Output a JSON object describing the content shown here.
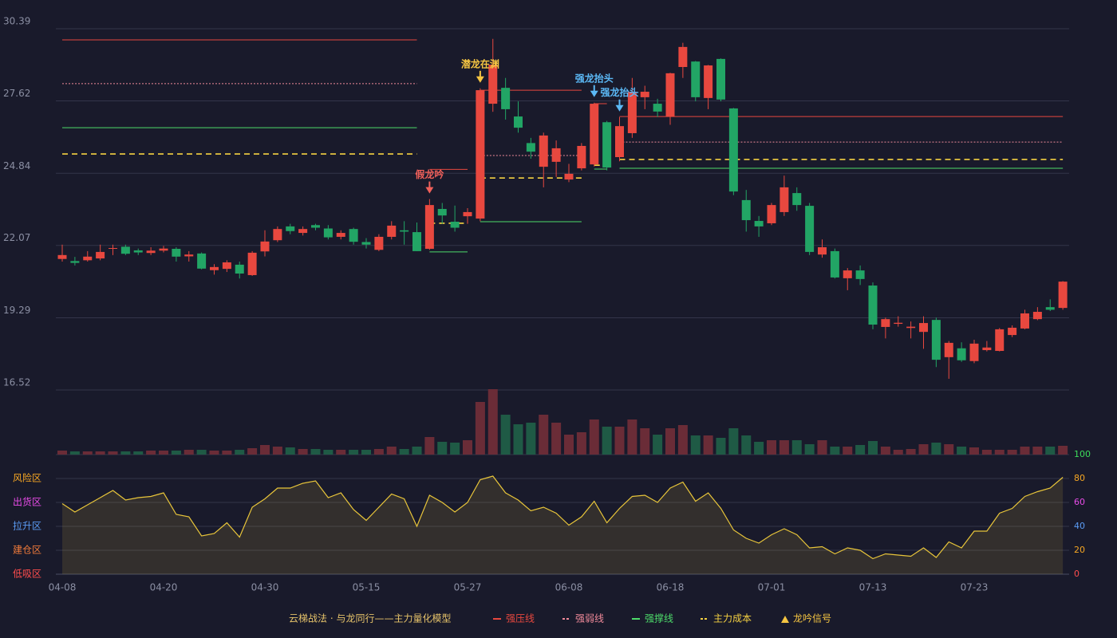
{
  "chart_data": {
    "type": "candlestick",
    "title": "云梯战法 · 与龙同行——主力量化模型",
    "categories": [
      "04-08",
      null,
      null,
      null,
      null,
      null,
      null,
      null,
      "04-20",
      null,
      null,
      null,
      null,
      null,
      null,
      null,
      "04-30",
      null,
      null,
      null,
      null,
      null,
      null,
      null,
      "05-15",
      null,
      null,
      null,
      null,
      null,
      null,
      null,
      "05-27",
      null,
      null,
      null,
      null,
      null,
      null,
      null,
      "06-08",
      null,
      null,
      null,
      null,
      null,
      null,
      null,
      "06-18",
      null,
      null,
      null,
      null,
      null,
      null,
      null,
      "07-01",
      null,
      null,
      null,
      null,
      null,
      null,
      null,
      "07-13",
      null,
      null,
      null,
      null,
      null,
      null,
      null,
      "07-23",
      null,
      null,
      null,
      null,
      null,
      null,
      null
    ],
    "ylim": [
      16.52,
      30.39
    ],
    "yticks": [
      16.52,
      19.29,
      22.07,
      24.84,
      27.62,
      30.39
    ],
    "grid": true,
    "up_color": "#e8483f",
    "down_color": "#22a565",
    "ohlc": [
      [
        21.55,
        22.1,
        21.45,
        21.7
      ],
      [
        21.47,
        21.63,
        21.3,
        21.4
      ],
      [
        21.5,
        21.85,
        21.45,
        21.64
      ],
      [
        21.57,
        22.1,
        21.5,
        21.82
      ],
      [
        21.95,
        22.1,
        21.7,
        21.97
      ],
      [
        22.02,
        22.1,
        21.7,
        21.75
      ],
      [
        21.88,
        21.95,
        21.7,
        21.8
      ],
      [
        21.78,
        22.0,
        21.7,
        21.87
      ],
      [
        21.87,
        22.05,
        21.8,
        21.95
      ],
      [
        21.94,
        22.0,
        21.45,
        21.64
      ],
      [
        21.65,
        21.85,
        21.45,
        21.72
      ],
      [
        21.76,
        21.8,
        21.15,
        21.18
      ],
      [
        21.12,
        21.35,
        20.95,
        21.24
      ],
      [
        21.17,
        21.5,
        21.05,
        21.42
      ],
      [
        21.33,
        21.45,
        20.8,
        20.99
      ],
      [
        20.93,
        21.85,
        20.9,
        21.79
      ],
      [
        21.84,
        22.65,
        21.65,
        22.22
      ],
      [
        22.27,
        22.8,
        22.2,
        22.7
      ],
      [
        22.8,
        22.9,
        22.5,
        22.62
      ],
      [
        22.55,
        22.8,
        22.45,
        22.7
      ],
      [
        22.85,
        22.9,
        22.65,
        22.75
      ],
      [
        22.72,
        22.85,
        22.3,
        22.38
      ],
      [
        22.4,
        22.65,
        22.3,
        22.55
      ],
      [
        22.7,
        22.75,
        22.1,
        22.21
      ],
      [
        22.2,
        22.35,
        21.95,
        22.1
      ],
      [
        21.9,
        22.5,
        21.85,
        22.4
      ],
      [
        22.4,
        23.0,
        22.3,
        22.83
      ],
      [
        22.65,
        23.0,
        22.1,
        22.6
      ],
      [
        22.58,
        22.95,
        21.85,
        21.85
      ],
      [
        21.94,
        23.85,
        21.9,
        23.62
      ],
      [
        23.47,
        23.7,
        22.9,
        23.22
      ],
      [
        22.98,
        23.6,
        22.6,
        22.75
      ],
      [
        23.19,
        23.5,
        22.9,
        23.35
      ],
      [
        23.1,
        28.1,
        23.0,
        28.03
      ],
      [
        27.51,
        30.0,
        27.2,
        29.01
      ],
      [
        28.12,
        28.5,
        26.9,
        27.3
      ],
      [
        27.02,
        27.6,
        26.4,
        26.59
      ],
      [
        26.0,
        26.2,
        25.4,
        25.67
      ],
      [
        25.09,
        26.4,
        24.3,
        26.29
      ],
      [
        25.28,
        26.1,
        24.7,
        25.8
      ],
      [
        24.6,
        25.2,
        24.5,
        24.82
      ],
      [
        25.03,
        26.0,
        24.95,
        25.89
      ],
      [
        25.18,
        27.55,
        25.1,
        27.51
      ],
      [
        26.8,
        26.85,
        24.95,
        25.06
      ],
      [
        25.46,
        27.0,
        25.3,
        26.65
      ],
      [
        26.38,
        28.5,
        26.2,
        27.97
      ],
      [
        27.76,
        28.2,
        27.3,
        27.97
      ],
      [
        27.51,
        27.7,
        27.0,
        27.21
      ],
      [
        27.02,
        28.7,
        26.7,
        28.68
      ],
      [
        28.92,
        29.85,
        28.5,
        29.69
      ],
      [
        29.13,
        29.15,
        27.6,
        27.76
      ],
      [
        27.73,
        29.0,
        27.3,
        28.98
      ],
      [
        29.23,
        29.25,
        27.6,
        27.67
      ],
      [
        27.33,
        27.35,
        24.0,
        24.14
      ],
      [
        23.81,
        24.2,
        22.6,
        23.04
      ],
      [
        23.01,
        23.2,
        22.4,
        22.8
      ],
      [
        22.92,
        23.7,
        22.85,
        23.62
      ],
      [
        23.35,
        24.75,
        23.2,
        24.3
      ],
      [
        24.08,
        24.3,
        23.4,
        23.62
      ],
      [
        23.59,
        23.7,
        21.7,
        21.82
      ],
      [
        21.72,
        22.3,
        21.6,
        22.0
      ],
      [
        21.85,
        21.95,
        20.8,
        20.84
      ],
      [
        20.81,
        21.2,
        20.35,
        21.11
      ],
      [
        21.11,
        21.3,
        20.55,
        20.78
      ],
      [
        20.53,
        20.65,
        18.85,
        19.03
      ],
      [
        18.94,
        19.3,
        18.5,
        19.24
      ],
      [
        19.06,
        19.35,
        18.95,
        19.1
      ],
      [
        18.9,
        19.15,
        18.5,
        18.95
      ],
      [
        18.75,
        19.35,
        18.1,
        19.09
      ],
      [
        19.21,
        19.3,
        17.4,
        17.68
      ],
      [
        17.78,
        18.4,
        16.95,
        18.33
      ],
      [
        18.12,
        18.35,
        17.6,
        17.66
      ],
      [
        17.63,
        18.45,
        17.55,
        18.3
      ],
      [
        18.05,
        18.4,
        18.0,
        18.15
      ],
      [
        18.02,
        18.9,
        18.0,
        18.85
      ],
      [
        18.63,
        19.0,
        18.55,
        18.91
      ],
      [
        18.88,
        19.6,
        18.85,
        19.46
      ],
      [
        19.24,
        19.7,
        19.2,
        19.52
      ],
      [
        19.7,
        20.0,
        19.55,
        19.6
      ],
      [
        19.67,
        20.7,
        19.6,
        20.68
      ]
    ],
    "volume": [
      5,
      4,
      4,
      4,
      4,
      4,
      4,
      5,
      5,
      5,
      6,
      6,
      5,
      5,
      6,
      8,
      12,
      10,
      9,
      7,
      7,
      6,
      6,
      6,
      6,
      7,
      10,
      7,
      10,
      22,
      16,
      15,
      18,
      66,
      82,
      50,
      38,
      40,
      50,
      40,
      25,
      28,
      44,
      35,
      35,
      44,
      33,
      25,
      33,
      37,
      24,
      24,
      21,
      33,
      24,
      16,
      18,
      18,
      18,
      13,
      18,
      10,
      10,
      12,
      17,
      10,
      6,
      7,
      13,
      15,
      13,
      10,
      9,
      6,
      6,
      6,
      10,
      10,
      10,
      11
    ],
    "volume_up_color": "#6a2c37",
    "volume_down_color": "#1f5a45",
    "lines": [
      {
        "name": "强压线",
        "color": "#e8483f",
        "style": "solid",
        "segments": [
          {
            "start": 0,
            "end": 28,
            "value": 29.96
          },
          {
            "start": 29,
            "end": 32,
            "value": 24.99
          },
          {
            "start": 33,
            "end": 41,
            "value": 28.03
          },
          {
            "start": 42,
            "end": 43,
            "value": 27.51
          },
          {
            "start": 44,
            "end": 79,
            "value": 27.02
          }
        ]
      },
      {
        "name": "强弱线",
        "color": "#f08a9a",
        "style": "dotted",
        "segments": [
          {
            "start": 0,
            "end": 28,
            "value": 28.28
          },
          {
            "start": 33,
            "end": 41,
            "value": 25.52
          },
          {
            "start": 44,
            "end": 79,
            "value": 26.04
          }
        ]
      },
      {
        "name": "强撑线",
        "color": "#4ddb6a",
        "style": "solid",
        "segments": [
          {
            "start": 0,
            "end": 28,
            "value": 26.59
          },
          {
            "start": 29,
            "end": 32,
            "value": 21.82
          },
          {
            "start": 33,
            "end": 41,
            "value": 22.98
          },
          {
            "start": 42,
            "end": 43,
            "value": 25.0
          },
          {
            "start": 44,
            "end": 79,
            "value": 25.03
          }
        ]
      },
      {
        "name": "主力成本",
        "color": "#f5d142",
        "style": "dashed",
        "segments": [
          {
            "start": 0,
            "end": 28,
            "value": 25.58
          },
          {
            "start": 29,
            "end": 32,
            "value": 22.92
          },
          {
            "start": 33,
            "end": 41,
            "value": 24.66
          },
          {
            "start": 42,
            "end": 43,
            "value": 25.15
          },
          {
            "start": 44,
            "end": 79,
            "value": 25.37
          }
        ]
      }
    ],
    "signal_name": "龙吟信号",
    "signal_color": "#f5c542",
    "signals": [
      {
        "index": 29,
        "label": "假龙吟",
        "color": "#f0605a"
      },
      {
        "index": 33,
        "label": "潜龙在渊",
        "color": "#f5c542"
      },
      {
        "index": 42,
        "label": "强龙抬头",
        "color": "#5bb8f5"
      },
      {
        "index": 44,
        "label": "强龙抬头",
        "color": "#5bb8f5"
      }
    ],
    "indicator": {
      "values": [
        59,
        52,
        58,
        64,
        70,
        62,
        64,
        65,
        68,
        50,
        48,
        32,
        34,
        43,
        31,
        56,
        63,
        72,
        72,
        76,
        78,
        64,
        68,
        54,
        45,
        56,
        67,
        63,
        40,
        66,
        60,
        52,
        60,
        79,
        82,
        68,
        62,
        53,
        56,
        51,
        41,
        48,
        61,
        43,
        55,
        65,
        66,
        60,
        72,
        77,
        61,
        68,
        55,
        37,
        30,
        26,
        33,
        38,
        33,
        22,
        23,
        17,
        22,
        20,
        13,
        17,
        16,
        15,
        22,
        14,
        27,
        22,
        36,
        36,
        51,
        55,
        65,
        69,
        72,
        81
      ],
      "color": "#e8c53a",
      "ylim": [
        0,
        100
      ],
      "yticks": [
        0,
        20,
        40,
        60,
        80,
        100
      ],
      "tick_colors": [
        "#ff4d4d",
        "#f5a623",
        "#5b9cf5",
        "#e84ce8",
        "#f5a623",
        "#3ddc5a"
      ],
      "zones": [
        {
          "label": "风险区",
          "value": 80,
          "color": "#f5a623"
        },
        {
          "label": "出货区",
          "value": 60,
          "color": "#e84ce8"
        },
        {
          "label": "拉升区",
          "value": 40,
          "color": "#5b9cf5"
        },
        {
          "label": "建仓区",
          "value": 20,
          "color": "#f07a3a"
        },
        {
          "label": "低吸区",
          "value": 0,
          "color": "#ff4d4d"
        }
      ]
    }
  }
}
